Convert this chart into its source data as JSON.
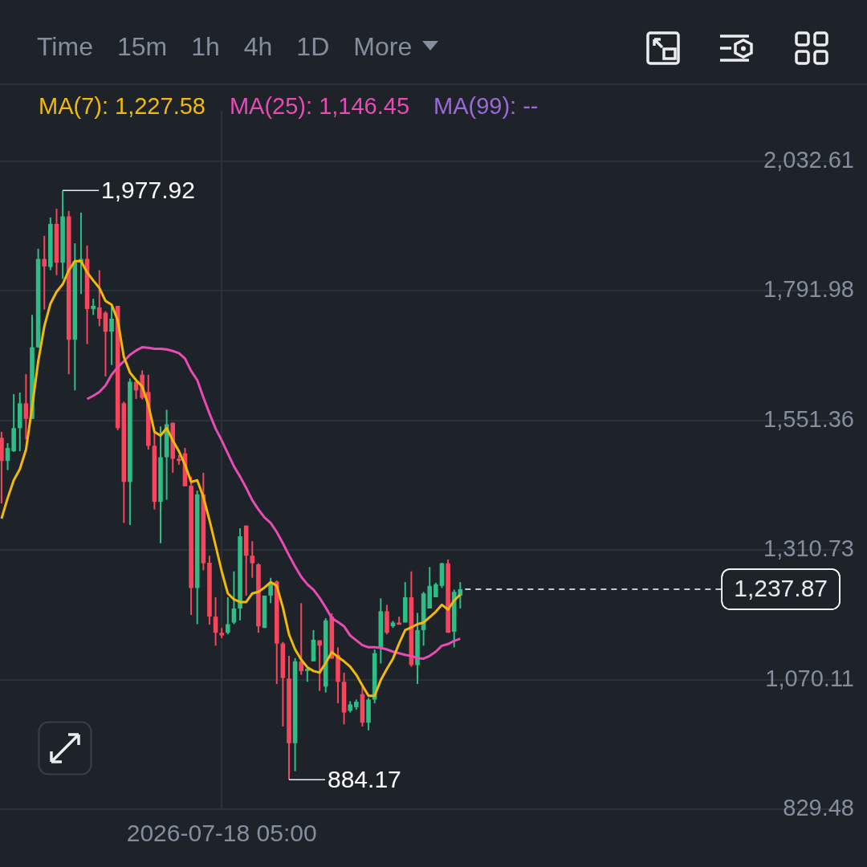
{
  "chart_data": {
    "type": "candlestick",
    "categories": [
      null,
      null,
      null,
      null,
      null,
      null,
      null,
      null,
      null,
      null,
      null,
      null,
      null,
      null,
      null,
      null,
      null,
      null,
      null,
      null,
      null,
      null,
      null,
      null,
      null,
      null,
      null,
      null,
      null,
      null,
      null,
      null,
      null,
      null,
      null,
      null,
      "2026-07-18 05:00",
      null,
      null,
      null,
      null,
      null,
      null,
      null,
      null,
      null,
      null,
      null,
      null,
      null,
      null,
      null,
      null,
      null,
      null,
      null,
      null,
      null,
      null,
      null,
      null,
      null,
      null,
      null,
      null,
      null,
      null,
      null,
      null,
      null,
      null,
      null,
      null,
      null,
      null,
      null
    ],
    "ohlc": [
      [
        1519,
        1530,
        1397,
        1476
      ],
      [
        1476,
        1509,
        1459,
        1500
      ],
      [
        1494,
        1600,
        1493,
        1537
      ],
      [
        1537,
        1603,
        1494,
        1583
      ],
      [
        1583,
        1637,
        1516,
        1554
      ],
      [
        1554,
        1747,
        1554,
        1687
      ],
      [
        1687,
        1870,
        1686,
        1851
      ],
      [
        1851,
        1894,
        1757,
        1837
      ],
      [
        1836,
        1928,
        1830,
        1916
      ],
      [
        1916,
        1944,
        1821,
        1844
      ],
      [
        1844,
        1977.92,
        1814,
        1930
      ],
      [
        1930,
        1940,
        1637,
        1701
      ],
      [
        1701,
        1880,
        1607,
        1847
      ],
      [
        1844,
        1937,
        1786,
        1851
      ],
      [
        1851,
        1876,
        1693,
        1758
      ],
      [
        1758,
        1777,
        1747,
        1764
      ],
      [
        1761,
        1830,
        1726,
        1740
      ],
      [
        1751,
        1754,
        1633,
        1716
      ],
      [
        1716,
        1764,
        1654,
        1740
      ],
      [
        1764,
        1764,
        1533,
        1537
      ],
      [
        1583,
        1586,
        1361,
        1437
      ],
      [
        1437,
        1629,
        1357,
        1623
      ],
      [
        1623,
        1623,
        1591,
        1607
      ],
      [
        1636,
        1644,
        1590,
        1593
      ],
      [
        1604,
        1636,
        1497,
        1504
      ],
      [
        1504,
        1529,
        1386,
        1400
      ],
      [
        1400,
        1540,
        1323,
        1483
      ],
      [
        1483,
        1571,
        1404,
        1544
      ],
      [
        1547,
        1547,
        1454,
        1480
      ],
      [
        1480,
        1487,
        1469,
        1476
      ],
      [
        1490,
        1500,
        1429,
        1429
      ],
      [
        1430,
        1447,
        1190,
        1240
      ],
      [
        1240,
        1421,
        1173,
        1414
      ],
      [
        1414,
        1454,
        1273,
        1286
      ],
      [
        1287,
        1300,
        1172,
        1187
      ],
      [
        1187,
        1223,
        1133,
        1157
      ],
      [
        1157,
        1166,
        1147,
        1152
      ],
      [
        1157,
        1223,
        1154,
        1173
      ],
      [
        1176,
        1271,
        1173,
        1202
      ],
      [
        1202,
        1351,
        1180,
        1336
      ],
      [
        1356,
        1356,
        1226,
        1300
      ],
      [
        1300,
        1327,
        1259,
        1286
      ],
      [
        1284,
        1286,
        1157,
        1169
      ],
      [
        1166,
        1226,
        1166,
        1226
      ],
      [
        1226,
        1259,
        1212,
        1247
      ],
      [
        1252,
        1254,
        1062,
        1137
      ],
      [
        1137,
        1140,
        983,
        1073
      ],
      [
        1072,
        1114,
        884.17,
        952
      ],
      [
        952,
        1110,
        900,
        1104
      ],
      [
        1104,
        1212,
        1079,
        1086
      ],
      [
        1086,
        1093,
        1066,
        1090
      ],
      [
        1104,
        1162,
        1104,
        1144
      ],
      [
        1143,
        1143,
        1049,
        1133
      ],
      [
        1057,
        1184,
        1046,
        1180
      ],
      [
        1187,
        1193,
        1109,
        1109
      ],
      [
        1116,
        1130,
        1026,
        1066
      ],
      [
        1066,
        1083,
        987,
        1009
      ],
      [
        1012,
        1030,
        1009,
        1024
      ],
      [
        1019,
        1033,
        1014,
        1029
      ],
      [
        1043,
        1057,
        983,
        990
      ],
      [
        990,
        1036,
        976,
        1033
      ],
      [
        1033,
        1126,
        1026,
        1119
      ],
      [
        1130,
        1221,
        1100,
        1197
      ],
      [
        1197,
        1209,
        1154,
        1157
      ],
      [
        1169,
        1179,
        1166,
        1176
      ],
      [
        1176,
        1187,
        1172,
        1172
      ],
      [
        1176,
        1251,
        1176,
        1223
      ],
      [
        1223,
        1271,
        1094,
        1097
      ],
      [
        1097,
        1194,
        1062,
        1162
      ],
      [
        1162,
        1233,
        1133,
        1230
      ],
      [
        1202,
        1279,
        1202,
        1244
      ],
      [
        1223,
        1250,
        1223,
        1247
      ],
      [
        1244,
        1287,
        1240,
        1286
      ],
      [
        1286,
        1293,
        1157,
        1157
      ],
      [
        1159,
        1237,
        1130,
        1233
      ],
      [
        1226,
        1251,
        1202,
        1237.87
      ]
    ],
    "colors": [
      "#f6465d",
      "#2ebd85",
      "#2ebd85",
      "#2ebd85",
      "#f6465d",
      "#2ebd85",
      "#2ebd85",
      "#f6465d",
      "#2ebd85",
      "#f6465d",
      "#2ebd85",
      "#f6465d",
      "#2ebd85",
      "#2ebd85",
      "#f6465d",
      "#2ebd85",
      "#f6465d",
      "#f6465d",
      "#2ebd85",
      "#f6465d",
      "#f6465d",
      "#2ebd85",
      "#f6465d",
      "#f6465d",
      "#f6465d",
      "#f6465d",
      "#2ebd85",
      "#2ebd85",
      "#f6465d",
      "#f6465d",
      "#f6465d",
      "#f6465d",
      "#2ebd85",
      "#f6465d",
      "#f6465d",
      "#f6465d",
      "#f6465d",
      "#2ebd85",
      "#2ebd85",
      "#2ebd85",
      "#f6465d",
      "#f6465d",
      "#f6465d",
      "#2ebd85",
      "#2ebd85",
      "#f6465d",
      "#f6465d",
      "#f6465d",
      "#2ebd85",
      "#f6465d",
      "#2ebd85",
      "#2ebd85",
      "#f6465d",
      "#2ebd85",
      "#f6465d",
      "#f6465d",
      "#f6465d",
      "#2ebd85",
      "#2ebd85",
      "#f6465d",
      "#2ebd85",
      "#2ebd85",
      "#2ebd85",
      "#f6465d",
      "#2ebd85",
      "#f6465d",
      "#2ebd85",
      "#f6465d",
      "#2ebd85",
      "#2ebd85",
      "#2ebd85",
      "#2ebd85",
      "#2ebd85",
      "#f6465d",
      "#2ebd85",
      "#2ebd85"
    ],
    "series": [
      {
        "name": "MA(7): 1,227.58",
        "type": "line",
        "color": "#f0b90b",
        "values": [
          1369,
          1407,
          1440,
          1461,
          1497,
          1576,
          1661,
          1726,
          1768,
          1790,
          1804,
          1830,
          1847,
          1847,
          1826,
          1811,
          1797,
          1773,
          1766,
          1737,
          1669,
          1640,
          1626,
          1614,
          1580,
          1530,
          1523,
          1537,
          1514,
          1494,
          1469,
          1437,
          1440,
          1409,
          1366,
          1319,
          1271,
          1230,
          1219,
          1214,
          1214,
          1230,
          1233,
          1241,
          1251,
          1244,
          1204,
          1154,
          1126,
          1107,
          1093,
          1086,
          1083,
          1101,
          1121,
          1112,
          1104,
          1094,
          1079,
          1059,
          1040,
          1040,
          1069,
          1090,
          1109,
          1137,
          1162,
          1167,
          1173,
          1176,
          1186,
          1196,
          1209,
          1200,
          1217,
          1228
        ]
      },
      {
        "name": "MA(25): 1,146.45",
        "type": "line",
        "color": "#e84bb5",
        "values": [
          null,
          null,
          null,
          null,
          null,
          null,
          null,
          null,
          null,
          null,
          null,
          null,
          null,
          null,
          1591,
          1597,
          1604,
          1616,
          1636,
          1650,
          1661,
          1673,
          1681,
          1687,
          1686,
          1684,
          1684,
          1683,
          1680,
          1676,
          1666,
          1643,
          1626,
          1594,
          1564,
          1536,
          1514,
          1490,
          1466,
          1447,
          1426,
          1403,
          1386,
          1371,
          1361,
          1344,
          1323,
          1301,
          1280,
          1261,
          1247,
          1237,
          1222,
          1204,
          1184,
          1177,
          1169,
          1152,
          1143,
          1134,
          1130,
          1130,
          1129,
          1126,
          1122,
          1119,
          1116,
          1114,
          1110,
          1109,
          1114,
          1122,
          1133,
          1136,
          1142,
          1146
        ]
      },
      {
        "name": "MA(99): --",
        "type": "line",
        "color": "#9c6ad8",
        "values": [
          null,
          null,
          null,
          null,
          null,
          null,
          null,
          null,
          null,
          null,
          null,
          null,
          null,
          null,
          null,
          null,
          null,
          null,
          null,
          null,
          null,
          null,
          null,
          null,
          null,
          null,
          null,
          null,
          null,
          null,
          null,
          null,
          null,
          null,
          null,
          null,
          null,
          null,
          null,
          null,
          null,
          null,
          null,
          null,
          null,
          null,
          null,
          null,
          null,
          null,
          null,
          null,
          null,
          null,
          null,
          null,
          null,
          null,
          null,
          null,
          null,
          null,
          null,
          null,
          null,
          null,
          null,
          null,
          null,
          null,
          null,
          null,
          null,
          null,
          null,
          null
        ]
      }
    ],
    "ylim": [
      829.48,
      2125.4
    ],
    "yticks": [
      {
        "value": 829.48,
        "label": "829.48"
      },
      {
        "value": 1070.11,
        "label": "1,070.11"
      },
      {
        "value": 1310.73,
        "label": "1,310.73"
      },
      {
        "value": 1551.36,
        "label": "1,551.36"
      },
      {
        "value": 1791.98,
        "label": "1,791.98"
      },
      {
        "value": 2032.61,
        "label": "2,032.61"
      }
    ],
    "ref_lines": [
      {
        "axis": "y",
        "value": 1237.87,
        "label": "1,237.87",
        "line_style": "dashed",
        "color": "#ffffff"
      }
    ],
    "annotations": [
      "Time",
      "15m",
      "1h",
      "4h",
      "1D",
      "More",
      "1,977.92",
      "884.17"
    ],
    "grid": true,
    "legend": "top",
    "marker": "none"
  }
}
